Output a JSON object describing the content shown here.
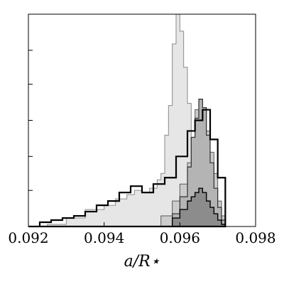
{
  "chart_data": {
    "type": "histogram",
    "xlabel": "a/R⋆",
    "xlim": [
      0.092,
      0.098
    ],
    "ylim": [
      0,
      1.0
    ],
    "x_ticks": [
      {
        "value": 0.092,
        "label": "0.092"
      },
      {
        "value": 0.094,
        "label": "0.094"
      },
      {
        "value": 0.096,
        "label": "0.096"
      },
      {
        "value": 0.098,
        "label": "0.098"
      }
    ],
    "y_ticks": [
      0.17,
      0.33,
      0.5,
      0.67,
      0.83
    ],
    "y_tick_labels_shown": false,
    "grid": false,
    "series": [
      {
        "fill": "#e6e6e6",
        "stroke": "#8a8a8a",
        "stroke_width": 1,
        "x": [
          0.0922,
          0.0925,
          0.093,
          0.0935,
          0.094,
          0.0943,
          0.0946,
          0.0948,
          0.095,
          0.0952,
          0.0954,
          0.0955,
          0.0956,
          0.0957,
          0.0958,
          0.0959,
          0.096,
          0.0961,
          0.0962,
          0.0963,
          0.0964,
          0.0965,
          0.0966,
          0.0967,
          0.0968,
          0.0969,
          0.097,
          0.0971,
          0.0972
        ],
        "y": [
          0.0,
          0.01,
          0.04,
          0.08,
          0.1,
          0.13,
          0.15,
          0.17,
          0.16,
          0.18,
          0.22,
          0.25,
          0.43,
          0.57,
          0.86,
          1.0,
          0.92,
          0.75,
          0.58,
          0.4,
          0.28,
          0.18,
          0.1,
          0.05,
          0.03,
          0.02,
          0.01,
          0.0,
          0.0
        ]
      },
      {
        "fill": "#cccccc",
        "stroke": "#5a5a5a",
        "stroke_width": 1,
        "x": [
          0.0952,
          0.0955,
          0.0958,
          0.096,
          0.0962,
          0.0963,
          0.0964,
          0.0965,
          0.0966,
          0.0967,
          0.0968,
          0.0969,
          0.097,
          0.0971,
          0.0972
        ],
        "y": [
          0.0,
          0.05,
          0.12,
          0.2,
          0.3,
          0.42,
          0.55,
          0.6,
          0.55,
          0.45,
          0.35,
          0.25,
          0.12,
          0.05,
          0.0
        ]
      },
      {
        "fill": "#b4b4b4",
        "stroke": "#2e2e2e",
        "stroke_width": 1.2,
        "x": [
          0.0955,
          0.0958,
          0.096,
          0.0962,
          0.0963,
          0.0964,
          0.0965,
          0.0966,
          0.0967,
          0.0968,
          0.0969,
          0.097,
          0.0971,
          0.0972
        ],
        "y": [
          0.0,
          0.06,
          0.14,
          0.28,
          0.42,
          0.51,
          0.6,
          0.56,
          0.43,
          0.3,
          0.18,
          0.09,
          0.03,
          0.0
        ]
      },
      {
        "fill": "#8c8c8c",
        "stroke": "#000000",
        "stroke_width": 1.4,
        "x": [
          0.0955,
          0.0958,
          0.096,
          0.0962,
          0.0963,
          0.0964,
          0.0965,
          0.0966,
          0.0967,
          0.0968,
          0.0969,
          0.097,
          0.0971,
          0.0972
        ],
        "y": [
          0.0,
          0.04,
          0.08,
          0.12,
          0.14,
          0.16,
          0.18,
          0.16,
          0.12,
          0.09,
          0.06,
          0.03,
          0.01,
          0.0
        ]
      },
      {
        "fill": "none",
        "stroke": "#000000",
        "stroke_width": 2.2,
        "x": [
          0.092,
          0.0923,
          0.0926,
          0.0929,
          0.0932,
          0.0935,
          0.0938,
          0.0941,
          0.0944,
          0.0947,
          0.095,
          0.0953,
          0.0956,
          0.0959,
          0.0962,
          0.0964,
          0.0966,
          0.0968,
          0.097,
          0.0972
        ],
        "y": [
          0.0,
          0.02,
          0.03,
          0.04,
          0.05,
          0.07,
          0.1,
          0.12,
          0.16,
          0.19,
          0.16,
          0.2,
          0.23,
          0.33,
          0.45,
          0.5,
          0.55,
          0.41,
          0.23,
          0.0
        ]
      }
    ]
  }
}
